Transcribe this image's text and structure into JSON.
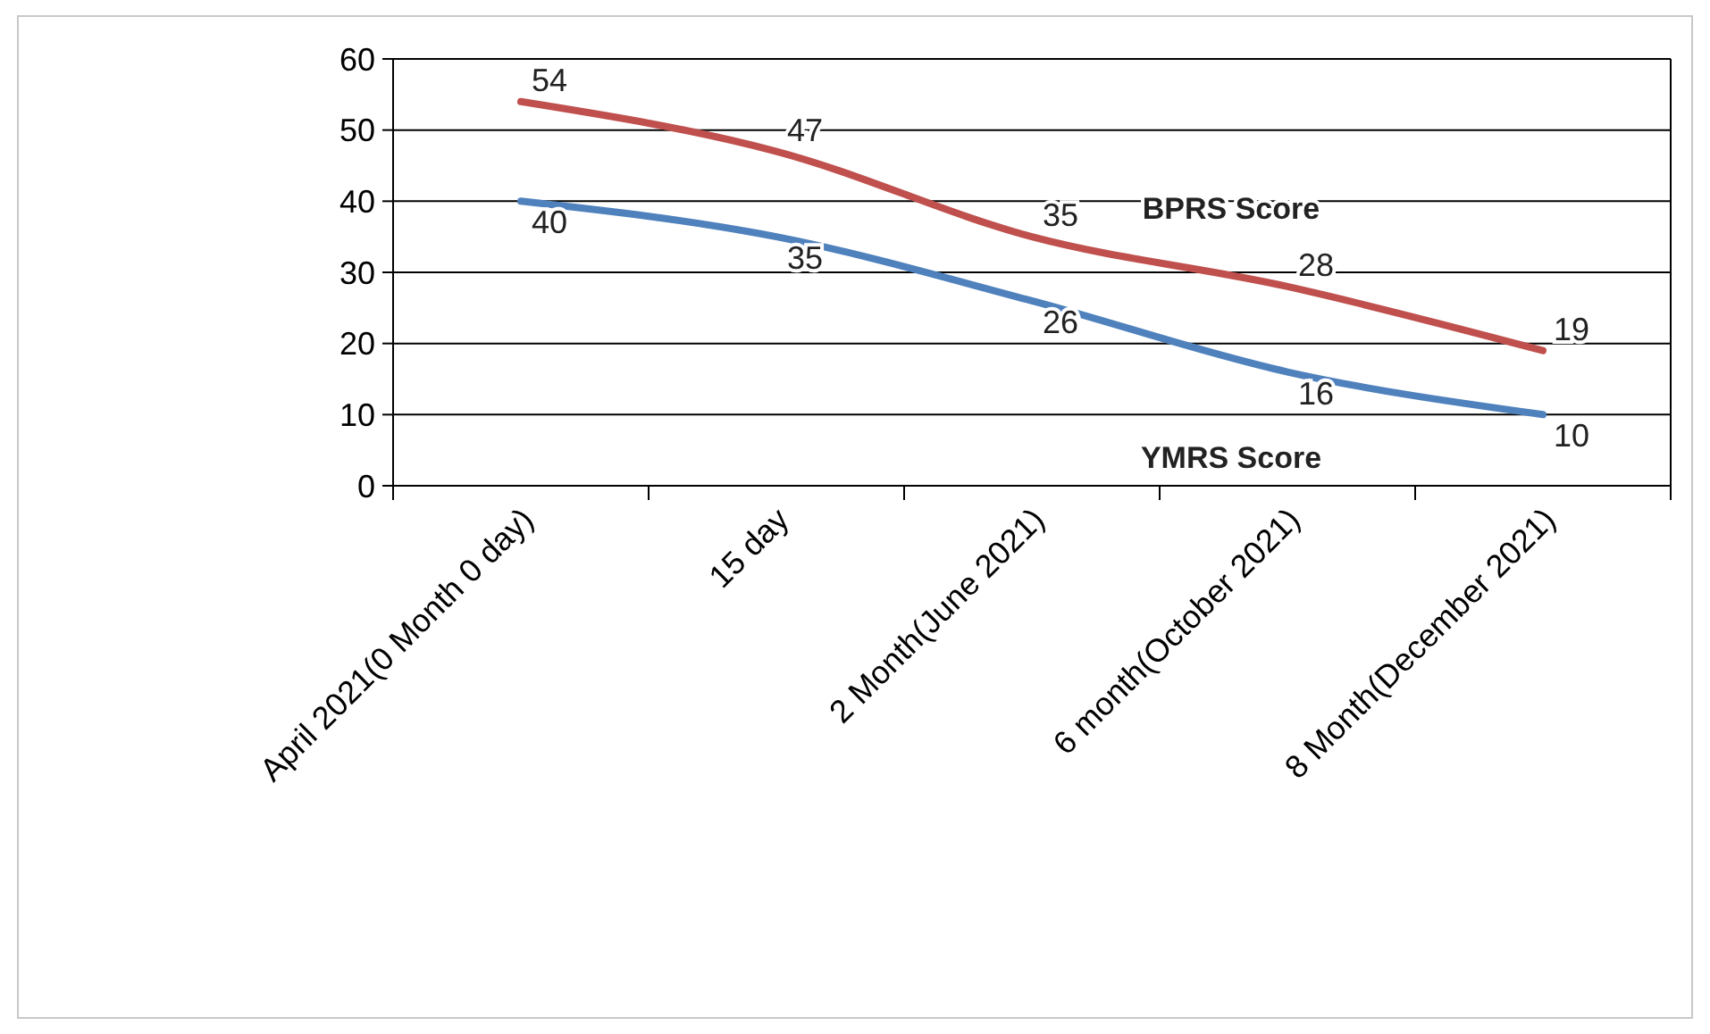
{
  "chart_data": {
    "type": "line",
    "categories": [
      "April 2021(0 Month 0 day)",
      "15 day",
      "2 Month(June 2021)",
      "6 month(October 2021)",
      "8 Month(December 2021)"
    ],
    "series": [
      {
        "name": "BPRS Score",
        "color": "#c0504d",
        "values": [
          54,
          47,
          35,
          28,
          19
        ]
      },
      {
        "name": "YMRS Score",
        "color": "#4f81bd",
        "values": [
          40,
          35,
          26,
          16,
          10
        ]
      }
    ],
    "ylim": [
      0,
      60
    ],
    "yticks": [
      0,
      10,
      20,
      30,
      40,
      50,
      60
    ],
    "grid": "y",
    "data_labels": true,
    "marker": "none",
    "line_style": "solid"
  }
}
